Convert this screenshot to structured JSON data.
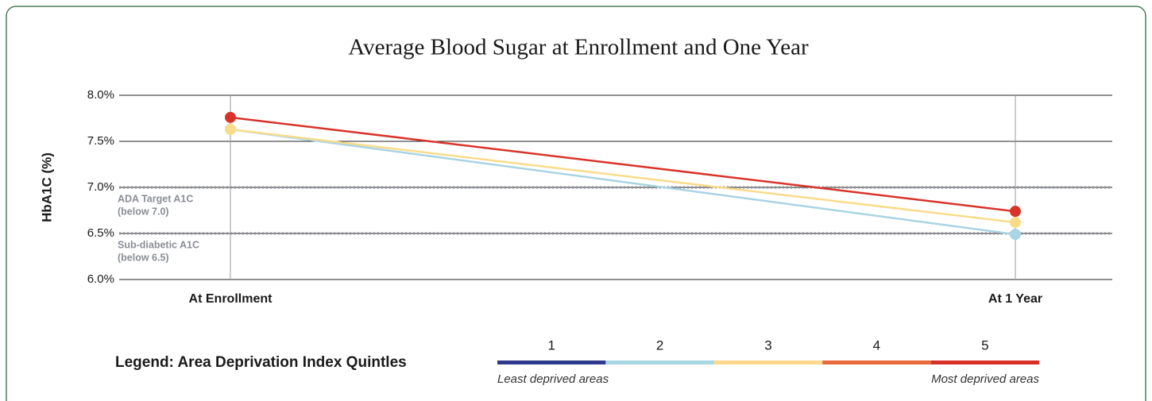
{
  "chart_data": {
    "type": "line",
    "title": "Average Blood Sugar at Enrollment and One Year",
    "y_label": "HbA1C (%)",
    "categories": [
      "At Enrollment",
      "At 1 Year"
    ],
    "series": [
      {
        "color": "#a9d4e3",
        "values": [
          7.63,
          6.49
        ]
      },
      {
        "color": "#f9dc8a",
        "values": [
          7.63,
          6.62
        ]
      },
      {
        "color": "#d8342a",
        "values": [
          7.76,
          6.74
        ]
      }
    ],
    "ylim": [
      6.0,
      8.0
    ],
    "yticks": [
      {
        "value": 6.0,
        "label": "6.0%"
      },
      {
        "value": 6.5,
        "label": "6.5%"
      },
      {
        "value": 7.0,
        "label": "7.0%"
      },
      {
        "value": 7.5,
        "label": "7.5%"
      },
      {
        "value": 8.0,
        "label": "8.0%"
      }
    ],
    "grid": true,
    "reference_lines": [
      {
        "value": 7.0,
        "label": [
          "ADA Target A1C",
          "(below 7.0)"
        ]
      },
      {
        "value": 6.5,
        "label": [
          "Sub-diabetic A1C",
          "(below 6.5)"
        ]
      }
    ],
    "legend": {
      "title": "Legend: Area Deprivation Index Quintles",
      "items": [
        {
          "label": "1",
          "color": "#2e3a8c"
        },
        {
          "label": "2",
          "color": "#a8d5e2"
        },
        {
          "label": "3",
          "color": "#fcd98a"
        },
        {
          "label": "4",
          "color": "#e9693c"
        },
        {
          "label": "5",
          "color": "#d73027"
        }
      ],
      "low_label": "Least deprived areas",
      "high_label": "Most deprived areas"
    }
  }
}
